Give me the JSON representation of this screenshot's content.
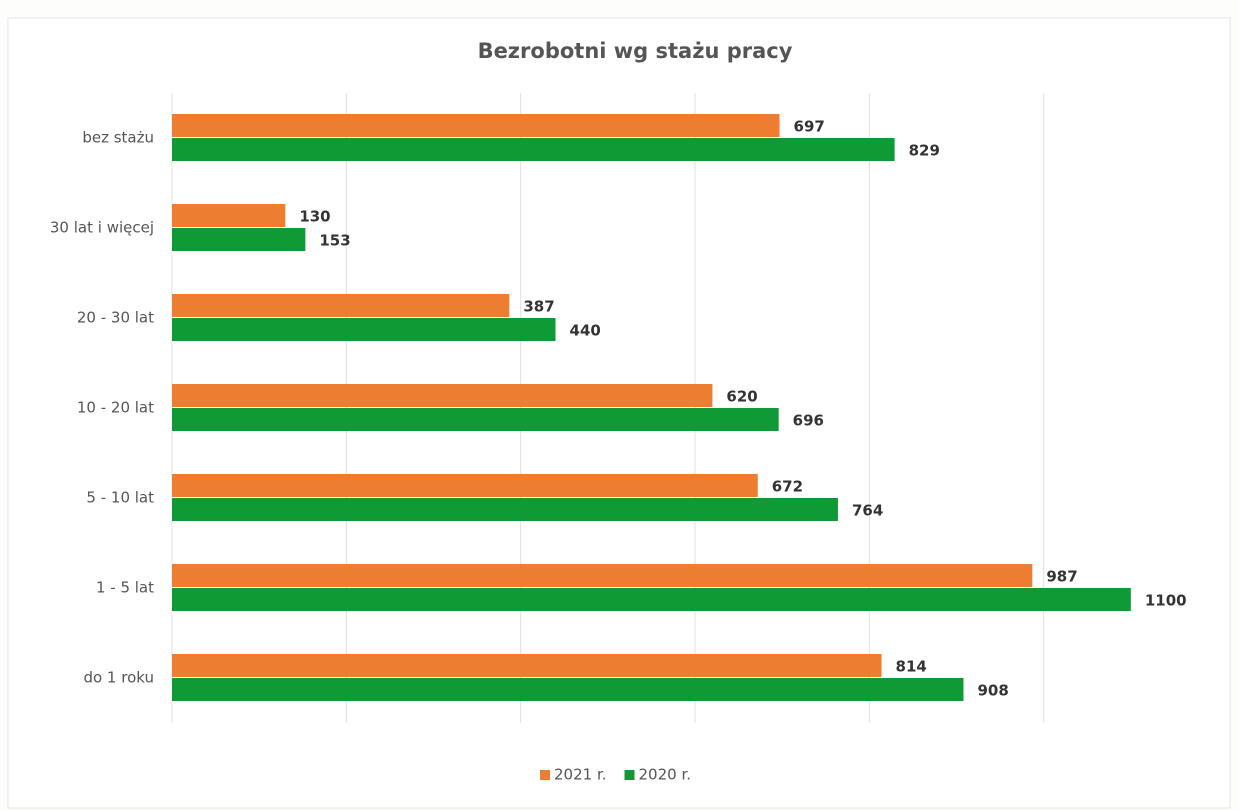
{
  "chart_data": {
    "type": "hbar",
    "title": "Bezrobotni wg stażu pracy",
    "categories": [
      "bez stażu",
      "30 lat i więcej",
      "20 - 30 lat",
      "10 - 20 lat",
      "5 - 10 lat",
      "1 - 5 lat",
      "do 1 roku"
    ],
    "series": [
      {
        "name": "2021 r.",
        "color": "#ed7d31",
        "values": [
          697,
          130,
          387,
          620,
          672,
          987,
          814
        ]
      },
      {
        "name": "2020 r.",
        "color": "#0f9a36",
        "values": [
          829,
          153,
          440,
          696,
          764,
          1100,
          908
        ]
      }
    ],
    "xlim": [
      0,
      1200
    ],
    "xticks": [
      0,
      200,
      400,
      600,
      800,
      1000
    ],
    "grid": true,
    "legend": "bottom"
  }
}
